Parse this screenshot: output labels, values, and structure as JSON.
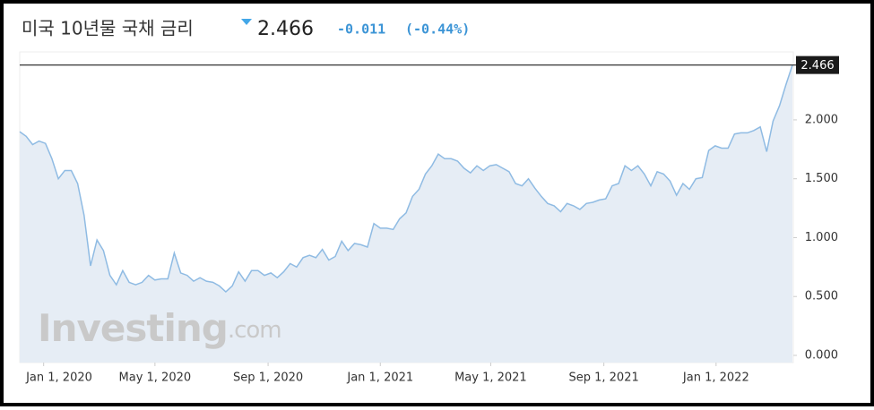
{
  "chart_data": {
    "type": "area",
    "title": "미국 10년물 국채 금리",
    "change": -0.011,
    "change_percent": "(-0.44%)",
    "watermark_brand": "Investing",
    "watermark_suffix": ".com",
    "x": [
      "2019-12-06",
      "2019-12-13",
      "2019-12-20",
      "2019-12-27",
      "2020-01-03",
      "2020-01-10",
      "2020-01-17",
      "2020-01-24",
      "2020-01-31",
      "2020-02-07",
      "2020-02-14",
      "2020-02-21",
      "2020-02-28",
      "2020-03-06",
      "2020-03-13",
      "2020-03-20",
      "2020-03-27",
      "2020-04-03",
      "2020-04-10",
      "2020-04-17",
      "2020-04-24",
      "2020-05-01",
      "2020-05-08",
      "2020-05-15",
      "2020-05-22",
      "2020-05-29",
      "2020-06-05",
      "2020-06-12",
      "2020-06-19",
      "2020-06-26",
      "2020-07-03",
      "2020-07-10",
      "2020-07-17",
      "2020-07-24",
      "2020-07-31",
      "2020-08-07",
      "2020-08-14",
      "2020-08-21",
      "2020-08-28",
      "2020-09-04",
      "2020-09-11",
      "2020-09-18",
      "2020-09-25",
      "2020-10-02",
      "2020-10-09",
      "2020-10-16",
      "2020-10-23",
      "2020-10-30",
      "2020-11-06",
      "2020-11-13",
      "2020-11-20",
      "2020-11-27",
      "2020-12-04",
      "2020-12-11",
      "2020-12-18",
      "2020-12-25",
      "2021-01-01",
      "2021-01-08",
      "2021-01-15",
      "2021-01-22",
      "2021-01-29",
      "2021-02-05",
      "2021-02-12",
      "2021-02-19",
      "2021-02-26",
      "2021-03-05",
      "2021-03-12",
      "2021-03-19",
      "2021-03-26",
      "2021-04-02",
      "2021-04-09",
      "2021-04-16",
      "2021-04-23",
      "2021-04-30",
      "2021-05-07",
      "2021-05-14",
      "2021-05-21",
      "2021-05-28",
      "2021-06-04",
      "2021-06-11",
      "2021-06-18",
      "2021-06-25",
      "2021-07-02",
      "2021-07-09",
      "2021-07-16",
      "2021-07-23",
      "2021-07-30",
      "2021-08-06",
      "2021-08-13",
      "2021-08-20",
      "2021-08-27",
      "2021-09-03",
      "2021-09-10",
      "2021-09-17",
      "2021-09-24",
      "2021-10-01",
      "2021-10-08",
      "2021-10-15",
      "2021-10-22",
      "2021-10-29",
      "2021-11-05",
      "2021-11-12",
      "2021-11-19",
      "2021-11-26",
      "2021-12-03",
      "2021-12-10",
      "2021-12-17",
      "2021-12-24",
      "2021-12-31",
      "2022-01-07",
      "2022-01-14",
      "2022-01-21",
      "2022-01-28",
      "2022-02-04",
      "2022-02-11",
      "2022-02-18",
      "2022-02-25",
      "2022-03-04",
      "2022-03-11",
      "2022-03-18",
      "2022-03-25"
    ],
    "series": [
      {
        "color": "#8fbbe3",
        "fill": "#e6edf5",
        "values": [
          1.9,
          1.86,
          1.79,
          1.82,
          1.8,
          1.67,
          1.5,
          1.57,
          1.57,
          1.46,
          1.19,
          0.76,
          0.98,
          0.89,
          0.68,
          0.6,
          0.72,
          0.62,
          0.6,
          0.62,
          0.68,
          0.64,
          0.65,
          0.65,
          0.87,
          0.7,
          0.68,
          0.63,
          0.66,
          0.63,
          0.62,
          0.59,
          0.54,
          0.59,
          0.71,
          0.63,
          0.72,
          0.72,
          0.68,
          0.7,
          0.66,
          0.71,
          0.78,
          0.75,
          0.83,
          0.85,
          0.83,
          0.9,
          0.81,
          0.84,
          0.97,
          0.89,
          0.95,
          0.94,
          0.92,
          1.12,
          1.08,
          1.08,
          1.07,
          1.16,
          1.21,
          1.35,
          1.41,
          1.54,
          1.61,
          1.71,
          1.67,
          1.67,
          1.65,
          1.59,
          1.55,
          1.61,
          1.57,
          1.61,
          1.62,
          1.59,
          1.56,
          1.46,
          1.44,
          1.5,
          1.42,
          1.35,
          1.29,
          1.27,
          1.22,
          1.29,
          1.27,
          1.24,
          1.29,
          1.3,
          1.32,
          1.33,
          1.44,
          1.46,
          1.61,
          1.57,
          1.61,
          1.54,
          1.44,
          1.56,
          1.54,
          1.48,
          1.36,
          1.46,
          1.41,
          1.5,
          1.51,
          1.74,
          1.78,
          1.76,
          1.76,
          1.88,
          1.89,
          1.89,
          1.91,
          1.94,
          1.73,
          1.99,
          2.12,
          2.3,
          2.466
        ]
      }
    ],
    "xlim": [
      "2019-12-06",
      "2022-03-25"
    ],
    "xticks": [
      {
        "value": "2020-01-01",
        "label": "Jan 1, 2020"
      },
      {
        "value": "2020-05-01",
        "label": "May 1, 2020"
      },
      {
        "value": "2020-09-01",
        "label": "Sep 1, 2020"
      },
      {
        "value": "2021-01-01",
        "label": "Jan 1, 2021"
      },
      {
        "value": "2021-05-01",
        "label": "May 1, 2021"
      },
      {
        "value": "2021-09-01",
        "label": "Sep 1, 2021"
      },
      {
        "value": "2022-01-01",
        "label": "Jan 1, 2022"
      }
    ],
    "ylim": [
      0,
      2.6
    ],
    "yticks": [
      {
        "value": 0,
        "label": "0.000"
      },
      {
        "value": 0.5,
        "label": "0.500"
      },
      {
        "value": 1,
        "label": "1.000"
      },
      {
        "value": 1.5,
        "label": "1.500"
      },
      {
        "value": 2,
        "label": "2.000"
      }
    ],
    "grid": false
  }
}
